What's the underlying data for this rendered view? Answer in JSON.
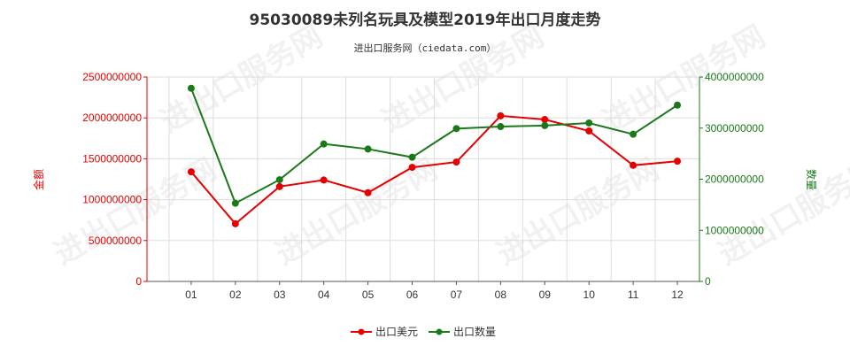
{
  "chart_data": {
    "type": "line",
    "title": "95030089未列名玩具及模型2019年出口月度走势",
    "subtitle": "进出口服务网（ciedata.com）",
    "categories": [
      "01",
      "02",
      "03",
      "04",
      "05",
      "06",
      "07",
      "08",
      "09",
      "10",
      "11",
      "12"
    ],
    "y_left": {
      "label": "金额",
      "ylim": [
        0,
        2500000000
      ],
      "ticks": [
        0,
        500000000,
        1000000000,
        1500000000,
        2000000000,
        2500000000
      ],
      "tick_labels": [
        "0",
        "500000000",
        "1000000000",
        "1500000000",
        "2000000000",
        "2500000000"
      ]
    },
    "y_right": {
      "label": "数量",
      "ylim": [
        0,
        4000000000
      ],
      "ticks": [
        0,
        1000000000,
        2000000000,
        3000000000,
        4000000000
      ],
      "tick_labels": [
        "0",
        "1000000000",
        "2000000000",
        "3000000000",
        "4000000000"
      ]
    },
    "grid": true,
    "legend_position": "bottom-center",
    "series": [
      {
        "name": "出口美元",
        "axis": "left",
        "color": "#e60000",
        "values": [
          1340000000,
          705000000,
          1160000000,
          1240000000,
          1085000000,
          1395000000,
          1460000000,
          2025000000,
          1980000000,
          1840000000,
          1420000000,
          1470000000
        ]
      },
      {
        "name": "出口数量",
        "axis": "right",
        "color": "#1a7a1a",
        "values": [
          3780000000,
          1530000000,
          1990000000,
          2690000000,
          2590000000,
          2430000000,
          2990000000,
          3030000000,
          3050000000,
          3100000000,
          2880000000,
          3450000000
        ]
      }
    ]
  },
  "watermark": {
    "text": "进出口服务网"
  }
}
